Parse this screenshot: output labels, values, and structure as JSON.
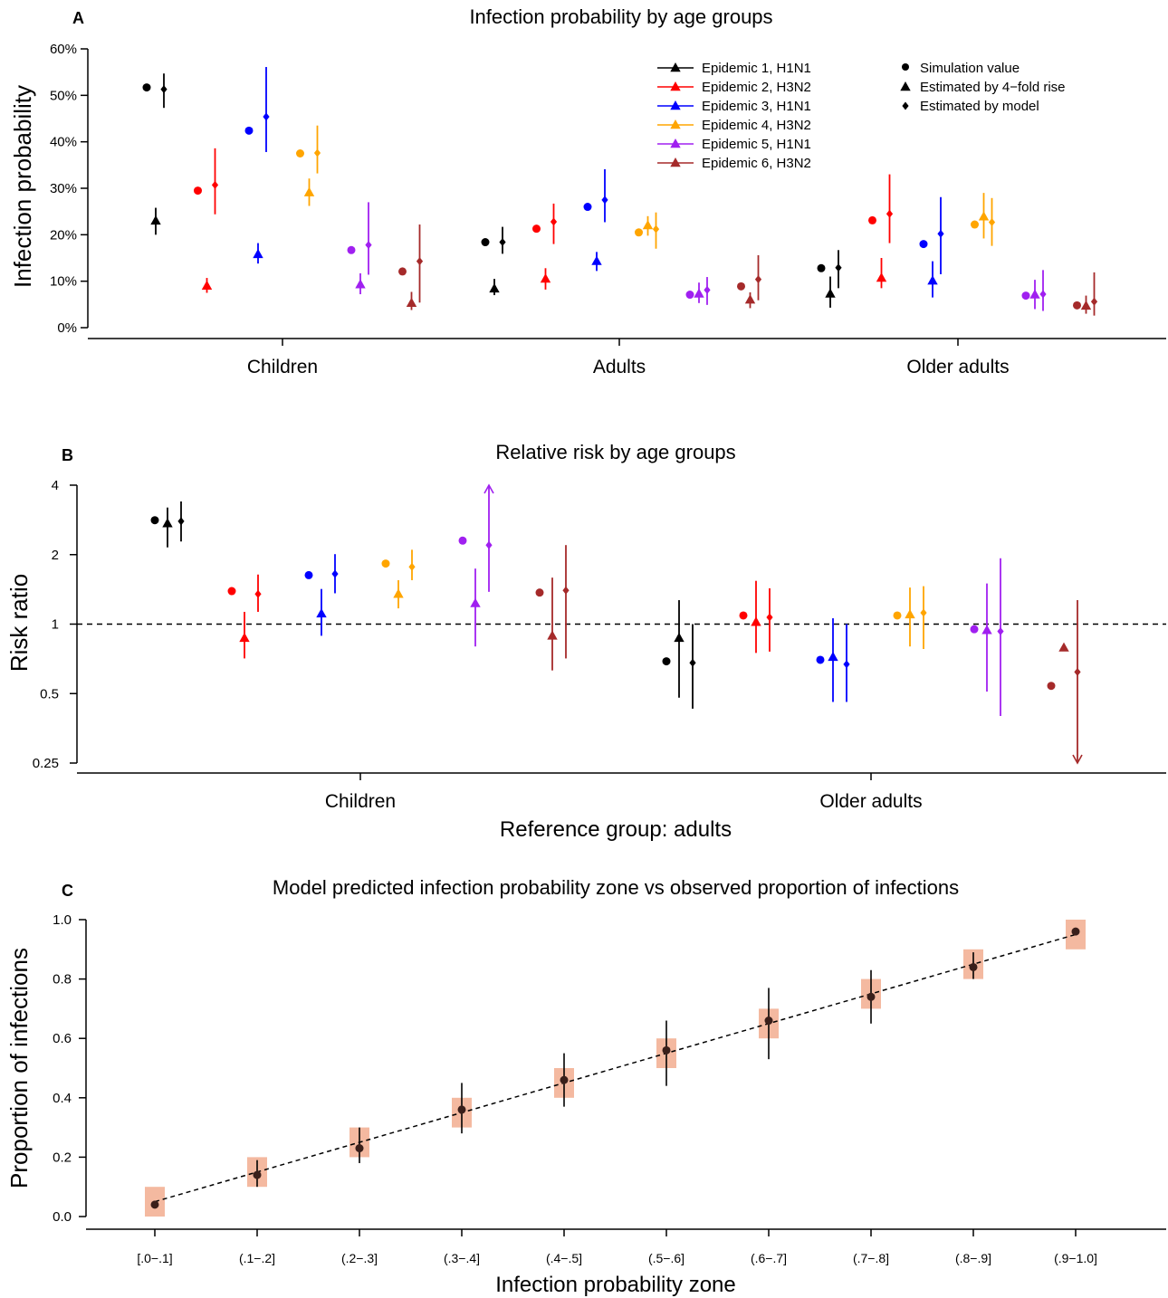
{
  "colors": {
    "epidemic_1": "#000000",
    "epidemic_2": "#ff0000",
    "epidemic_3": "#0000ff",
    "epidemic_4": "#ffa500",
    "epidemic_5": "#a020f0",
    "epidemic_6": "#a52a2a",
    "zone_box": "#f4b9a0"
  },
  "legend": {
    "epidemics": [
      "Epidemic 1, H1N1",
      "Epidemic 2, H3N2",
      "Epidemic 3, H1N1",
      "Epidemic 4, H3N2",
      "Epidemic 5, H1N1",
      "Epidemic 6, H3N2"
    ],
    "markers": [
      "Simulation value",
      "Estimated by 4−fold rise",
      "Estimated by model"
    ]
  },
  "chart_data": [
    {
      "panel": "A",
      "type": "scatter",
      "title": "Infection probability by age groups",
      "ylabel": "Infection probability",
      "xlabel": "",
      "ylim": [
        0,
        60
      ],
      "yticks": [
        "0%",
        "10%",
        "20%",
        "30%",
        "40%",
        "50%",
        "60%"
      ],
      "categories": [
        "Children",
        "Adults",
        "Older adults"
      ],
      "series": [
        {
          "name": "Epidemic 1, H1N1",
          "sim": [
            51.7,
            18.4,
            12.8
          ],
          "fold": [
            23.0,
            8.4,
            7.3
          ],
          "fold_lo": [
            20.0,
            7.0,
            4.3
          ],
          "fold_hi": [
            25.8,
            10.5,
            11.0
          ],
          "model": [
            51.3,
            18.4,
            12.9
          ],
          "model_lo": [
            47.3,
            15.9,
            8.5
          ],
          "model_hi": [
            54.7,
            21.7,
            16.7
          ]
        },
        {
          "name": "Epidemic 2, H3N2",
          "sim": [
            29.5,
            21.3,
            23.1
          ],
          "fold": [
            9.0,
            10.5,
            10.7
          ],
          "fold_lo": [
            7.5,
            8.2,
            8.5
          ],
          "fold_hi": [
            10.7,
            12.8,
            15.0
          ],
          "model": [
            30.7,
            22.8,
            24.5
          ],
          "model_lo": [
            24.4,
            18.0,
            18.2
          ],
          "model_hi": [
            38.6,
            26.7,
            33.0
          ]
        },
        {
          "name": "Epidemic 3, H1N1",
          "sim": [
            42.4,
            26.0,
            18.0
          ],
          "fold": [
            15.8,
            14.3,
            10.1
          ],
          "fold_lo": [
            13.8,
            12.2,
            6.5
          ],
          "fold_hi": [
            18.2,
            16.3,
            14.3
          ],
          "model": [
            45.4,
            27.5,
            20.2
          ],
          "model_lo": [
            37.8,
            22.7,
            11.5
          ],
          "model_hi": [
            56.1,
            34.1,
            28.1
          ]
        },
        {
          "name": "Epidemic 4, H3N2",
          "sim": [
            37.5,
            20.5,
            22.2
          ],
          "fold": [
            29.1,
            22.0,
            23.9
          ],
          "fold_lo": [
            26.2,
            19.8,
            19.2
          ],
          "fold_hi": [
            32.1,
            24.0,
            29.0
          ],
          "model": [
            37.6,
            21.2,
            22.7
          ],
          "model_lo": [
            33.2,
            17.0,
            17.6
          ],
          "model_hi": [
            43.5,
            24.8,
            27.9
          ]
        },
        {
          "name": "Epidemic 5, H1N1",
          "sim": [
            16.7,
            7.1,
            6.9
          ],
          "fold": [
            9.3,
            7.3,
            7.1
          ],
          "fold_lo": [
            7.2,
            5.3,
            4.0
          ],
          "fold_hi": [
            11.7,
            9.7,
            10.3
          ],
          "model": [
            17.8,
            8.1,
            7.2
          ],
          "model_lo": [
            11.4,
            4.9,
            3.6
          ],
          "model_hi": [
            27.0,
            10.9,
            12.4
          ]
        },
        {
          "name": "Epidemic 6, H3N2",
          "sim": [
            12.1,
            8.9,
            4.8
          ],
          "fold": [
            5.3,
            6.0,
            4.7
          ],
          "fold_lo": [
            3.8,
            4.2,
            3.0
          ],
          "fold_hi": [
            7.7,
            7.6,
            6.9
          ],
          "model": [
            14.3,
            10.4,
            5.6
          ],
          "model_lo": [
            5.4,
            5.9,
            2.6
          ],
          "model_hi": [
            22.2,
            15.6,
            11.9
          ]
        }
      ]
    },
    {
      "panel": "B",
      "type": "scatter",
      "title": "Relative risk by age groups",
      "ylabel": "Risk ratio",
      "xlabel": "Reference group: adults",
      "yscale": "log2",
      "ylim": [
        0.25,
        4
      ],
      "yticks": [
        "0.25",
        "0.5",
        "1",
        "2",
        "4"
      ],
      "reference_line": 1,
      "categories": [
        "Children",
        "Older adults"
      ],
      "series": [
        {
          "name": "Epidemic 1, H1N1",
          "sim": [
            2.82,
            0.69
          ],
          "fold": [
            2.73,
            0.87
          ],
          "fold_lo": [
            2.15,
            0.48
          ],
          "fold_hi": [
            3.2,
            1.27
          ],
          "model": [
            2.79,
            0.68
          ],
          "model_lo": [
            2.28,
            0.43
          ],
          "model_hi": [
            3.4,
            1.0
          ]
        },
        {
          "name": "Epidemic 2, H3N2",
          "sim": [
            1.39,
            1.09
          ],
          "fold": [
            0.87,
            1.02
          ],
          "fold_lo": [
            0.71,
            0.75
          ],
          "fold_hi": [
            1.13,
            1.54
          ],
          "model": [
            1.35,
            1.07
          ],
          "model_lo": [
            1.13,
            0.76
          ],
          "model_hi": [
            1.64,
            1.43
          ]
        },
        {
          "name": "Epidemic 3, H1N1",
          "sim": [
            1.63,
            0.7
          ],
          "fold": [
            1.11,
            0.72
          ],
          "fold_lo": [
            0.89,
            0.46
          ],
          "fold_hi": [
            1.42,
            1.06
          ],
          "model": [
            1.65,
            0.67
          ],
          "model_lo": [
            1.36,
            0.46
          ],
          "model_hi": [
            2.01,
            1.0
          ]
        },
        {
          "name": "Epidemic 4, H3N2",
          "sim": [
            1.83,
            1.09
          ],
          "fold": [
            1.35,
            1.1
          ],
          "fold_lo": [
            1.17,
            0.8
          ],
          "fold_hi": [
            1.55,
            1.44
          ],
          "model": [
            1.77,
            1.12
          ],
          "model_lo": [
            1.55,
            0.78
          ],
          "model_hi": [
            2.1,
            1.46
          ]
        },
        {
          "name": "Epidemic 5, H1N1",
          "sim": [
            2.3,
            0.95
          ],
          "fold": [
            1.23,
            0.94
          ],
          "fold_lo": [
            0.8,
            0.51
          ],
          "fold_hi": [
            1.74,
            1.5
          ],
          "model": [
            2.2,
            0.93
          ],
          "model_lo": [
            1.38,
            0.4
          ],
          "model_hi": [
            4.0,
            1.93
          ]
        },
        {
          "name": "Epidemic 6, H3N2",
          "sim": [
            1.37,
            0.54
          ],
          "fold": [
            0.89,
            0.79
          ],
          "fold_lo": [
            0.63,
            null
          ],
          "fold_hi": [
            1.59,
            1.34
          ],
          "model": [
            1.4,
            0.62
          ],
          "model_lo": [
            0.71,
            0.25
          ],
          "model_hi": [
            2.2,
            1.27
          ]
        }
      ]
    },
    {
      "panel": "C",
      "type": "scatter",
      "title": "Model predicted infection probability zone vs observed proportion of infections",
      "ylabel": "Proportion of infections",
      "xlabel": "Infection probability zone",
      "ylim": [
        0,
        1
      ],
      "yticks": [
        "0.0",
        "0.2",
        "0.4",
        "0.6",
        "0.8",
        "1.0"
      ],
      "categories": [
        "[.0−.1]",
        "(.1−.2]",
        "(.2−.3]",
        "(.3−.4]",
        "(.4−.5]",
        "(.5−.6]",
        "(.6−.7]",
        "(.7−.8]",
        "(.8−.9]",
        "(.9−1.0]"
      ],
      "zone_lo": [
        0.0,
        0.1,
        0.2,
        0.3,
        0.4,
        0.5,
        0.6,
        0.7,
        0.8,
        0.9
      ],
      "zone_hi": [
        0.1,
        0.2,
        0.3,
        0.4,
        0.5,
        0.6,
        0.7,
        0.8,
        0.9,
        1.0
      ],
      "observed": [
        0.04,
        0.14,
        0.23,
        0.36,
        0.46,
        0.56,
        0.66,
        0.74,
        0.84,
        0.96
      ],
      "observed_lo": [
        0.03,
        0.1,
        0.18,
        0.28,
        0.37,
        0.44,
        0.53,
        0.65,
        0.8,
        0.95
      ],
      "observed_hi": [
        0.05,
        0.19,
        0.3,
        0.45,
        0.55,
        0.66,
        0.77,
        0.83,
        0.89,
        0.97
      ],
      "dashed_line_x": [
        0.05,
        0.95
      ],
      "dashed_line_y": [
        0.05,
        0.95
      ]
    }
  ]
}
